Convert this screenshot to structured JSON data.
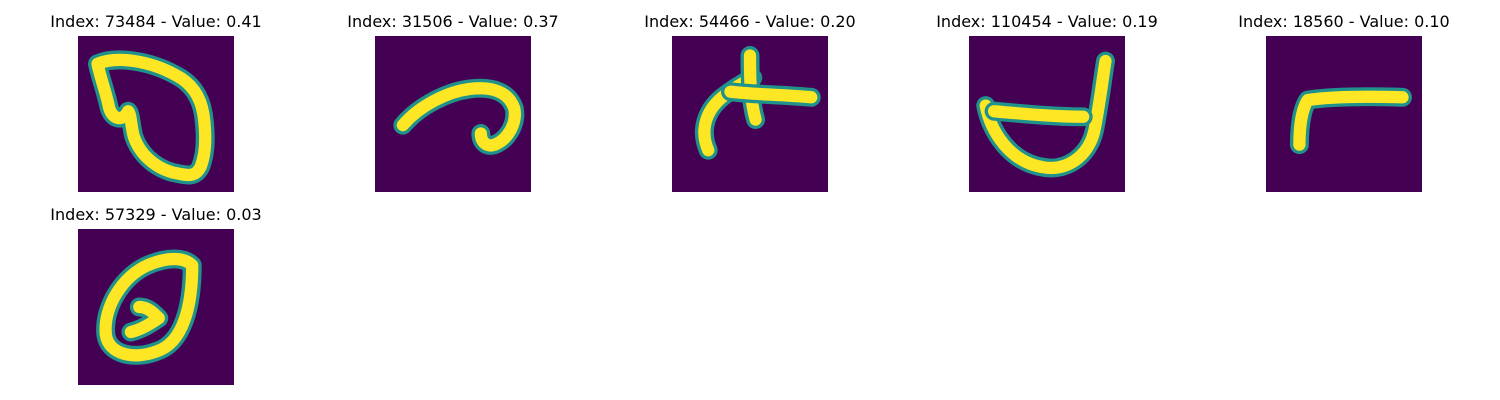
{
  "figure": {
    "colors": {
      "background": "#440154",
      "stroke": "#fde725",
      "edge": "#21918c"
    }
  },
  "chart_data": {
    "type": "image_grid",
    "colormap": "viridis",
    "items": [
      {
        "index": 73484,
        "value": 0.41,
        "title": "Index: 73484 - Value: 0.41",
        "glyph": "heart-loop"
      },
      {
        "index": 31506,
        "value": 0.37,
        "title": "Index: 31506 - Value: 0.37",
        "glyph": "hook"
      },
      {
        "index": 54466,
        "value": 0.2,
        "title": "Index: 54466 - Value: 0.20",
        "glyph": "arrow-cross"
      },
      {
        "index": 110454,
        "value": 0.19,
        "title": "Index: 110454 - Value: 0.19",
        "glyph": "bowl-stick"
      },
      {
        "index": 18560,
        "value": 0.1,
        "title": "Index: 18560 - Value: 0.10",
        "glyph": "bent-bar"
      },
      {
        "index": 57329,
        "value": 0.03,
        "title": "Index: 57329 - Value: 0.03",
        "glyph": "zero-loop"
      }
    ]
  }
}
